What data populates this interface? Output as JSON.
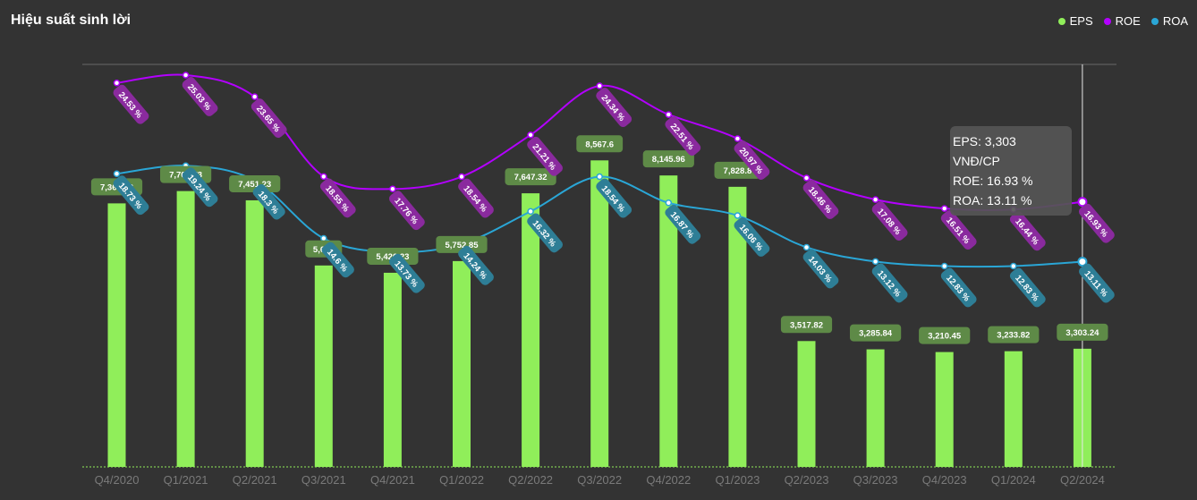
{
  "header": {
    "title": "Hiệu suất sinh lời"
  },
  "legend": [
    {
      "label": "EPS",
      "color": "#90ee5a"
    },
    {
      "label": "ROE",
      "color": "#b300ff"
    },
    {
      "label": "ROA",
      "color": "#2aa6d6"
    }
  ],
  "tooltip": {
    "eps": "EPS: 3,303 VNĐ/CP",
    "roe": "ROE: 16.93 %",
    "roa": "ROA: 13.11 %"
  },
  "chart_data": {
    "type": "bar",
    "categories": [
      "Q4/2020",
      "Q1/2021",
      "Q2/2021",
      "Q3/2021",
      "Q4/2021",
      "Q1/2022",
      "Q2/2022",
      "Q3/2022",
      "Q4/2022",
      "Q1/2023",
      "Q2/2023",
      "Q3/2023",
      "Q4/2023",
      "Q1/2024",
      "Q2/2024"
    ],
    "series": [
      {
        "name": "EPS",
        "kind": "bar",
        "color": "#90ee5a",
        "values": [
          7365.72,
          7709.73,
          7451.23,
          5630,
          5426.23,
          5752.85,
          7647.32,
          8567.6,
          8145.96,
          7828.8,
          3517.82,
          3285.84,
          3210.45,
          3233.82,
          3303.24
        ],
        "labels": [
          "7,365.72",
          "7,709.73",
          "7,451.23",
          "5,630",
          "5,426.23",
          "5,752.85",
          "7,647.32",
          "8,567.6",
          "8,145.96",
          "7,828.8",
          "3,517.82",
          "3,285.84",
          "3,210.45",
          "3,233.82",
          "3,303.24"
        ]
      },
      {
        "name": "ROE",
        "kind": "line",
        "color": "#b300ff",
        "label_color": "#8a2a9e",
        "values": [
          24.53,
          25.03,
          23.65,
          18.55,
          17.76,
          18.54,
          21.21,
          24.34,
          22.51,
          20.97,
          18.46,
          17.08,
          16.51,
          16.44,
          16.93
        ],
        "labels": [
          "24.53 %",
          "25.03 %",
          "23.65 %",
          "18.55 %",
          "17.76 %",
          "18.54 %",
          "21.21 %",
          "24.34 %",
          "22.51 %",
          "20.97 %",
          "18.46 %",
          "17.08 %",
          "16.51 %",
          "16.44 %",
          "16.93 %"
        ]
      },
      {
        "name": "ROA",
        "kind": "line",
        "color": "#2aa6d6",
        "label_color": "#2e7e96",
        "values": [
          18.73,
          19.24,
          18.3,
          14.6,
          13.73,
          14.24,
          16.32,
          18.54,
          16.87,
          16.06,
          14.03,
          13.12,
          12.83,
          12.83,
          13.11
        ],
        "labels": [
          "18.73 %",
          "19.24 %",
          "18.3 %",
          "14.6 %",
          "13.73 %",
          "14.24 %",
          "16.32 %",
          "18.54 %",
          "16.87 %",
          "16.06 %",
          "14.03 %",
          "13.12 %",
          "12.83 %",
          "12.83 %",
          "13.11 %"
        ]
      }
    ],
    "eps_axis": [
      0,
      10000
    ],
    "pct_axis": [
      0,
      30
    ],
    "grid": false,
    "highlight_index": 14,
    "eps_label_color": "#5e8a47"
  }
}
